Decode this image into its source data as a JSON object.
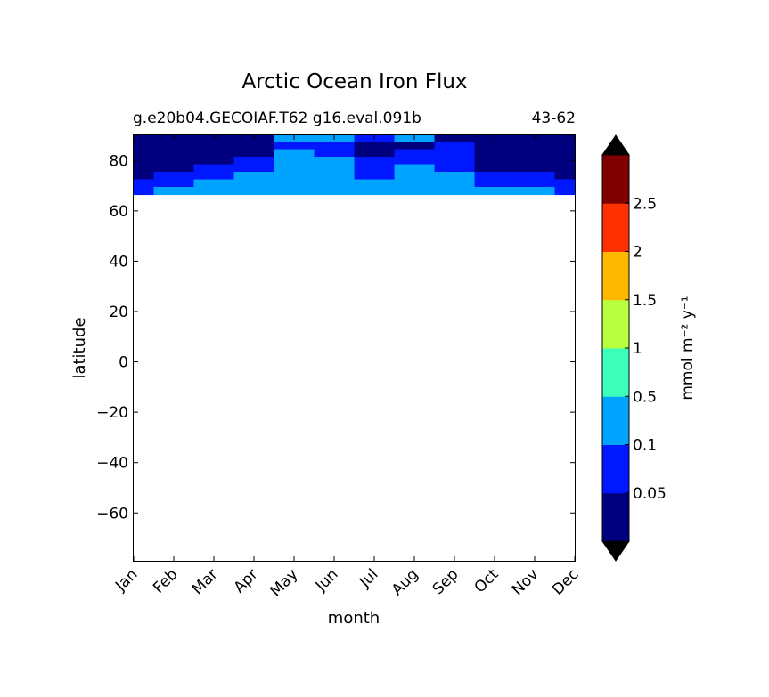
{
  "chart_data": {
    "type": "heatmap",
    "title": "Arctic Ocean Iron Flux",
    "subtitle_left": "g.e20b04.GECOIAF.T62 g16.eval.091b",
    "subtitle_right": "43-62",
    "xlabel": "month",
    "ylabel": "latitude",
    "x_categories": [
      "Jan",
      "Feb",
      "Mar",
      "Apr",
      "May",
      "Jun",
      "Jul",
      "Aug",
      "Sep",
      "Oct",
      "Nov",
      "Dec"
    ],
    "xlim": [
      0,
      11
    ],
    "ylim": [
      -79,
      90
    ],
    "yticks": [
      80,
      60,
      40,
      20,
      0,
      -20,
      -40,
      -60
    ],
    "ytick_labels": [
      "80",
      "60",
      "40",
      "20",
      "0",
      "−20",
      "−40",
      "−60"
    ],
    "data_lat_range": [
      66.5,
      90
    ],
    "colorbar": {
      "label": "mmol m⁻² y⁻¹",
      "extend": "both",
      "tick_labels": [
        "0.05",
        "0.1",
        "0.5",
        "1",
        "1.5",
        "2",
        "2.5"
      ],
      "colors": [
        "#00007f",
        "#0018ff",
        "#00a4ff",
        "#3cffba",
        "#b7ff3f",
        "#ffb800",
        "#ff3000",
        "#7f0000"
      ],
      "under_color": "#000000",
      "over_color": "#000000"
    },
    "bands": [
      {
        "lat": 89.0,
        "values": [
          0.02,
          0.02,
          0.02,
          0.03,
          0.15,
          0.15,
          0.06,
          0.15,
          0.02,
          0.02,
          0.02,
          0.02
        ]
      },
      {
        "lat": 86.0,
        "values": [
          0.02,
          0.02,
          0.02,
          0.03,
          0.07,
          0.07,
          0.02,
          0.02,
          0.07,
          0.02,
          0.02,
          0.02
        ]
      },
      {
        "lat": 83.0,
        "values": [
          0.02,
          0.02,
          0.02,
          0.04,
          0.15,
          0.07,
          0.04,
          0.07,
          0.07,
          0.02,
          0.02,
          0.02
        ]
      },
      {
        "lat": 80.0,
        "values": [
          0.02,
          0.02,
          0.03,
          0.07,
          0.15,
          0.15,
          0.07,
          0.07,
          0.07,
          0.03,
          0.02,
          0.02
        ]
      },
      {
        "lat": 77.0,
        "values": [
          0.02,
          0.03,
          0.07,
          0.07,
          0.15,
          0.15,
          0.07,
          0.15,
          0.07,
          0.04,
          0.03,
          0.02
        ]
      },
      {
        "lat": 74.0,
        "values": [
          0.04,
          0.06,
          0.07,
          0.15,
          0.15,
          0.15,
          0.07,
          0.15,
          0.15,
          0.07,
          0.06,
          0.04
        ]
      },
      {
        "lat": 71.0,
        "values": [
          0.07,
          0.07,
          0.15,
          0.15,
          0.15,
          0.15,
          0.15,
          0.15,
          0.15,
          0.07,
          0.07,
          0.07
        ]
      },
      {
        "lat": 68.0,
        "values": [
          0.07,
          0.15,
          0.15,
          0.15,
          0.15,
          0.15,
          0.15,
          0.15,
          0.15,
          0.15,
          0.15,
          0.07
        ]
      }
    ]
  }
}
